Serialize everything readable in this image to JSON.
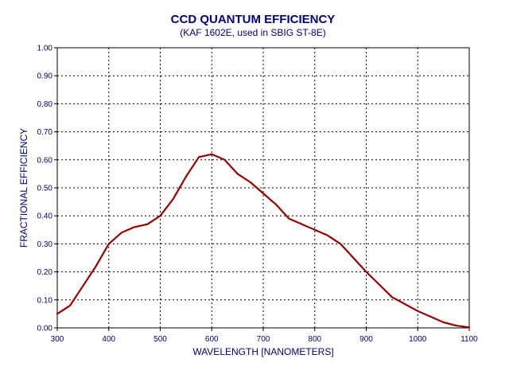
{
  "chart_data": {
    "type": "line",
    "title": "CCD QUANTUM EFFICIENCY",
    "subtitle": "(KAF 1602E, used in SBIG ST-8E)",
    "xlabel": "WAVELENGTH [NANOMETERS]",
    "ylabel": "FRACTIONAL EFFICIENCY",
    "xlim": [
      300,
      1100
    ],
    "ylim": [
      0,
      1
    ],
    "grid": true,
    "x_ticks": [
      300,
      400,
      500,
      600,
      700,
      800,
      900,
      1000,
      1100
    ],
    "y_ticks": [
      0.0,
      0.1,
      0.2,
      0.3,
      0.4,
      0.5,
      0.6,
      0.7,
      0.8,
      0.9,
      1.0
    ],
    "x_tick_labels": [
      "300",
      "400",
      "500",
      "600",
      "700",
      "800",
      "900",
      "1000",
      "1100"
    ],
    "y_tick_labels": [
      "0.00",
      "0.10",
      "0.20",
      "0.30",
      "0.40",
      "0.50",
      "0.60",
      "0.70",
      "0.80",
      "0.90",
      "1.00"
    ],
    "series": [
      {
        "color": "#990000",
        "x": [
          300,
          325,
          350,
          375,
          400,
          425,
          450,
          475,
          500,
          525,
          550,
          575,
          600,
          625,
          650,
          675,
          700,
          725,
          750,
          775,
          800,
          825,
          850,
          875,
          900,
          925,
          950,
          975,
          1000,
          1025,
          1050,
          1075,
          1100
        ],
        "y": [
          0.05,
          0.08,
          0.15,
          0.22,
          0.3,
          0.34,
          0.36,
          0.37,
          0.4,
          0.46,
          0.54,
          0.61,
          0.62,
          0.6,
          0.55,
          0.52,
          0.48,
          0.44,
          0.39,
          0.37,
          0.35,
          0.33,
          0.3,
          0.25,
          0.2,
          0.155,
          0.11,
          0.085,
          0.06,
          0.04,
          0.02,
          0.008,
          0.002
        ]
      }
    ]
  },
  "colors": {
    "title": "#000080",
    "axis_text": "#000080",
    "frame": "#000000",
    "grid": "#000000"
  }
}
